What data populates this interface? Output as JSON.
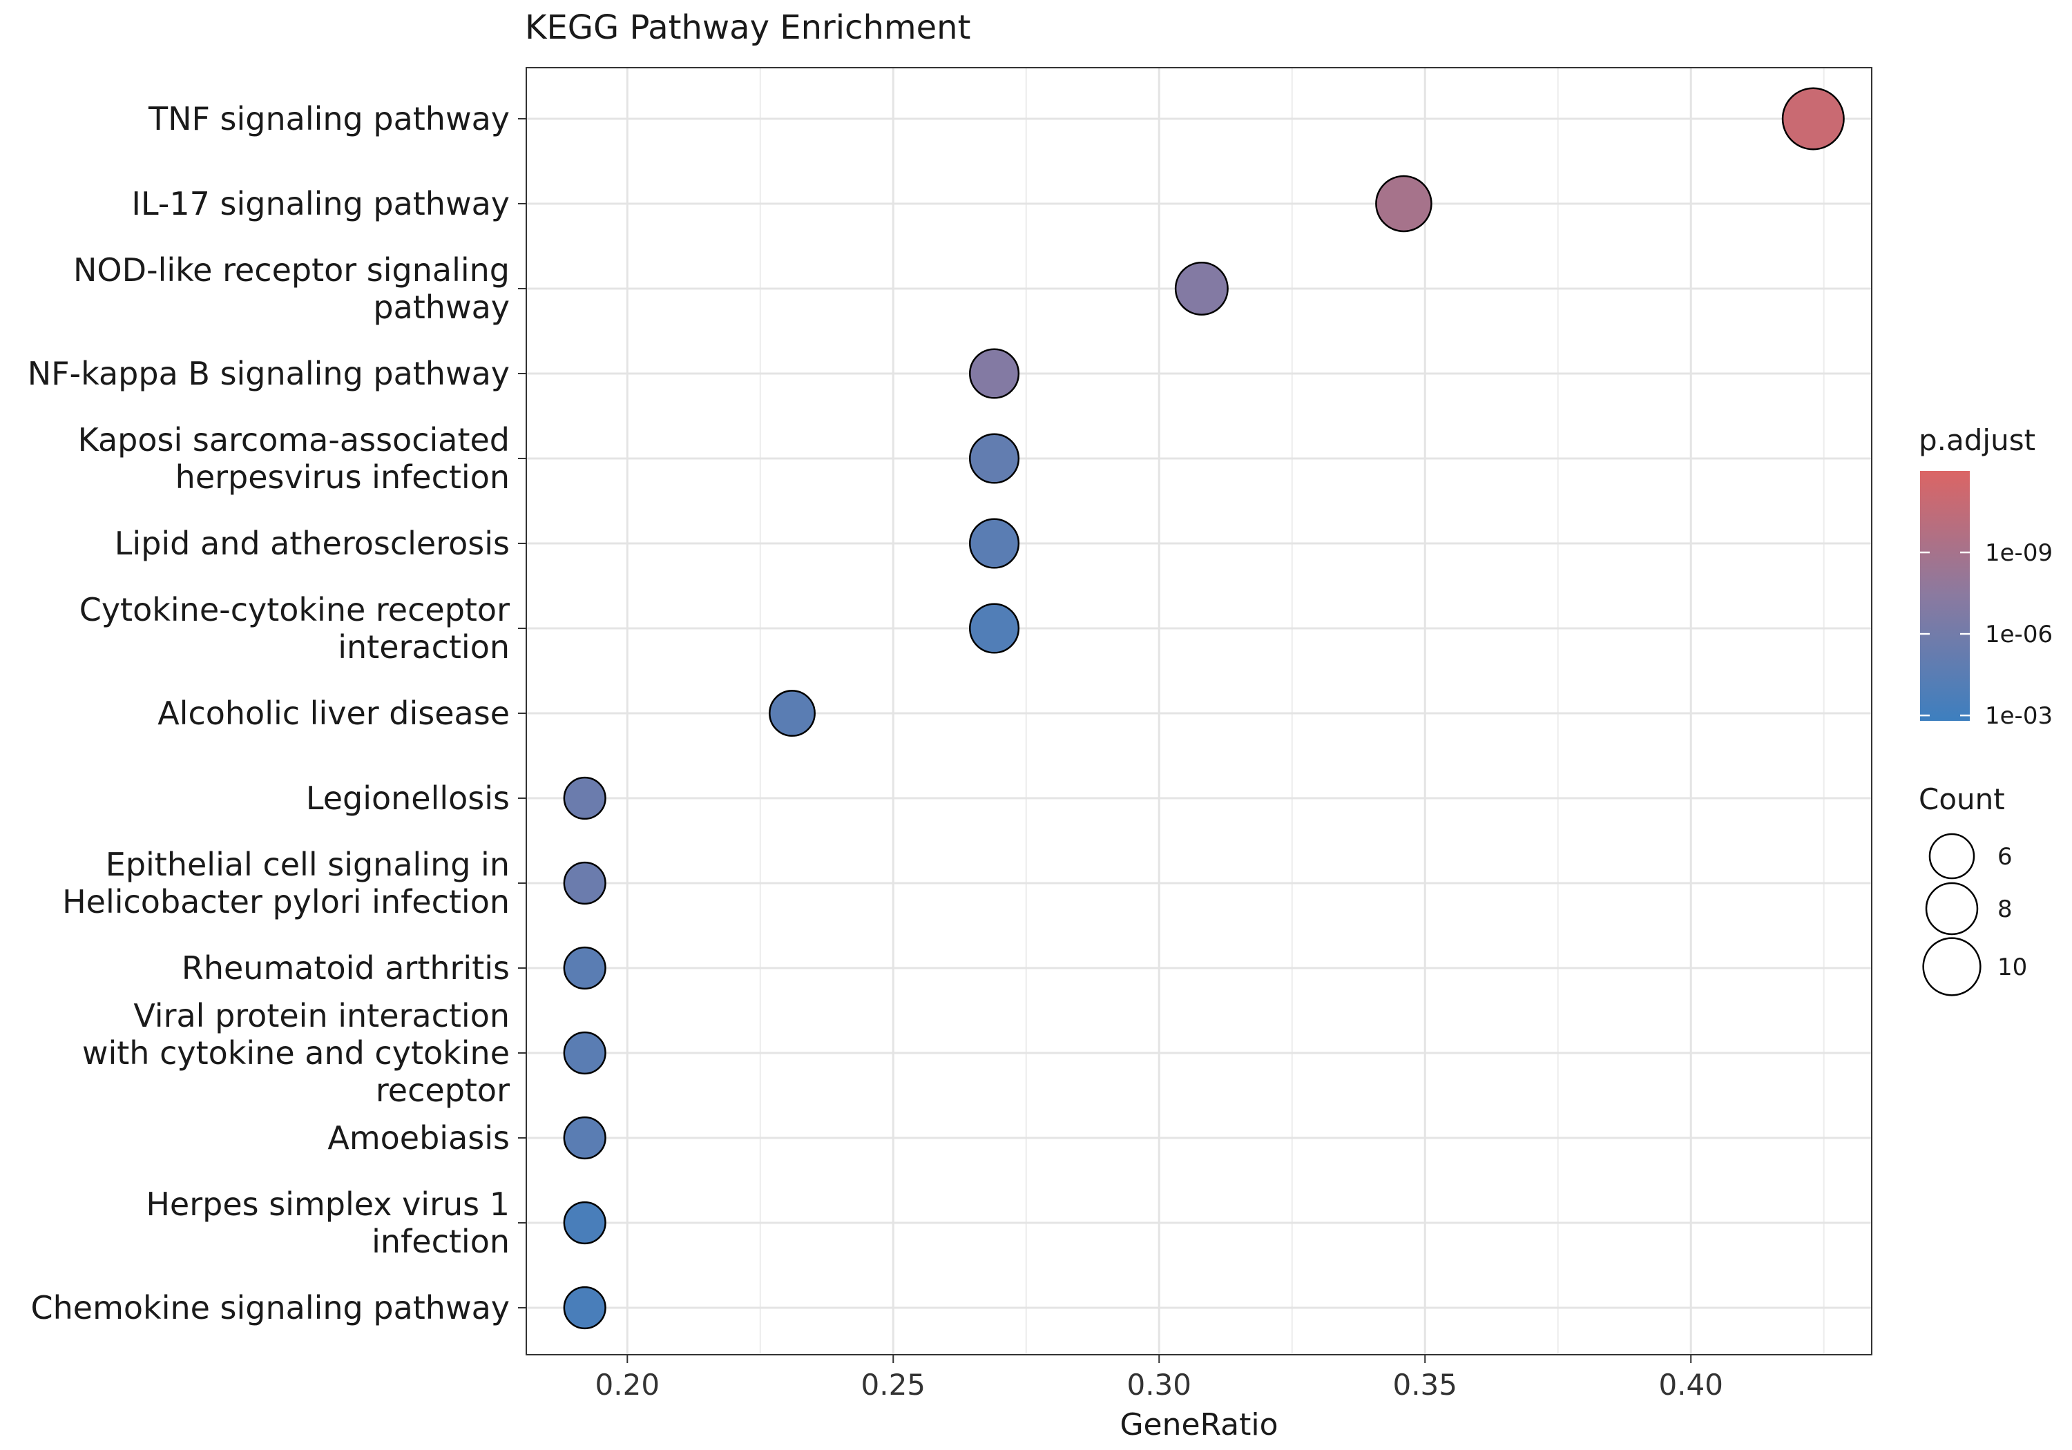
{
  "chart_data": {
    "type": "scatter",
    "title": "KEGG Pathway Enrichment",
    "xlabel": "GeneRatio",
    "ylabel": "",
    "xlim": [
      0.181,
      0.434
    ],
    "xticks": [
      0.2,
      0.25,
      0.3,
      0.35,
      0.4
    ],
    "xtick_labels": [
      "0.20",
      "0.25",
      "0.30",
      "0.35",
      "0.40"
    ],
    "grid": true,
    "legend_placement": "right",
    "categories": [
      "TNF signaling pathway",
      "IL-17 signaling pathway",
      "NOD-like receptor signaling\npathway",
      "NF-kappa B signaling pathway",
      "Kaposi sarcoma-associated\nherpesvirus infection",
      "Lipid and atherosclerosis",
      "Cytokine-cytokine receptor\ninteraction",
      "Alcoholic liver disease",
      "Legionellosis",
      "Epithelial cell signaling in\nHelicobacter pylori infection",
      "Rheumatoid arthritis",
      "Viral protein interaction\nwith cytokine and cytokine\nreceptor",
      "Amoebiasis",
      "Herpes simplex virus 1\ninfection",
      "Chemokine signaling pathway"
    ],
    "points": [
      {
        "gene_ratio": 0.423,
        "count": 11,
        "p_adjust": 1e-11
      },
      {
        "gene_ratio": 0.346,
        "count": 9,
        "p_adjust": 1e-09
      },
      {
        "gene_ratio": 0.308,
        "count": 8,
        "p_adjust": 1e-07
      },
      {
        "gene_ratio": 0.269,
        "count": 7,
        "p_adjust": 1e-07
      },
      {
        "gene_ratio": 0.269,
        "count": 7,
        "p_adjust": 1e-05
      },
      {
        "gene_ratio": 0.269,
        "count": 7,
        "p_adjust": 3e-05
      },
      {
        "gene_ratio": 0.269,
        "count": 7,
        "p_adjust": 0.0001
      },
      {
        "gene_ratio": 0.231,
        "count": 6,
        "p_adjust": 3e-05
      },
      {
        "gene_ratio": 0.192,
        "count": 5,
        "p_adjust": 3e-06
      },
      {
        "gene_ratio": 0.192,
        "count": 5,
        "p_adjust": 3e-06
      },
      {
        "gene_ratio": 0.192,
        "count": 5,
        "p_adjust": 3e-05
      },
      {
        "gene_ratio": 0.192,
        "count": 5,
        "p_adjust": 3e-05
      },
      {
        "gene_ratio": 0.192,
        "count": 5,
        "p_adjust": 3e-05
      },
      {
        "gene_ratio": 0.192,
        "count": 5,
        "p_adjust": 0.0003
      },
      {
        "gene_ratio": 0.192,
        "count": 5,
        "p_adjust": 0.0003
      }
    ],
    "color_legend": {
      "title": "p.adjust",
      "low_color": "#3d7fbf",
      "mid_color": "#8a7aa0",
      "high_color": "#db6565",
      "range_log10": [
        -2.8,
        -12.0
      ],
      "ticks": [
        {
          "value": 1e-09,
          "label": "1e-09"
        },
        {
          "value": 1e-06,
          "label": "1e-06"
        },
        {
          "value": 0.001,
          "label": "1e-03"
        }
      ]
    },
    "size_legend": {
      "title": "Count",
      "entries": [
        {
          "value": 6,
          "label": "6"
        },
        {
          "value": 8,
          "label": "8"
        },
        {
          "value": 10,
          "label": "10"
        }
      ]
    }
  }
}
